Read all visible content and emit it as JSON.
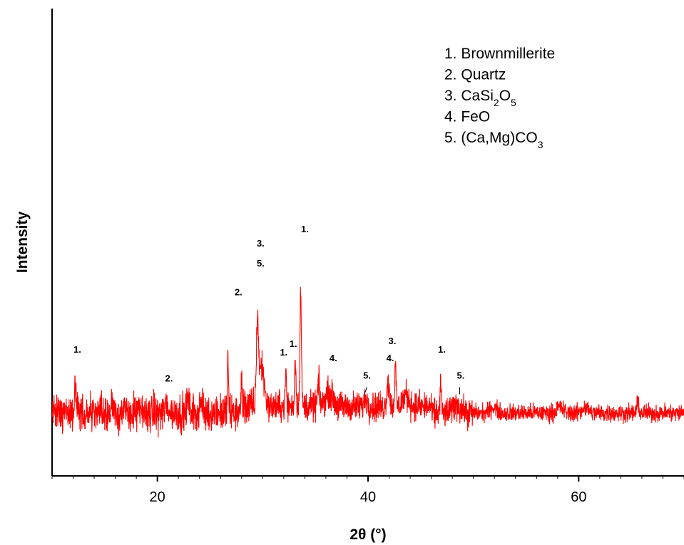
{
  "chart_data": {
    "type": "line",
    "title": "",
    "xlabel": "2θ (°)",
    "ylabel": "Intensity",
    "xlim": [
      10,
      70
    ],
    "ylim": [
      0,
      100
    ],
    "xticks": [
      20,
      40,
      60
    ],
    "y_tick_labels": false,
    "grid": false,
    "color": "#ff0000",
    "legend": {
      "placement": "top-right",
      "entries": [
        {
          "num": "1.",
          "parts": [
            [
              "Brownmillerite",
              ""
            ]
          ]
        },
        {
          "num": "2.",
          "parts": [
            [
              "Quartz",
              ""
            ]
          ]
        },
        {
          "num": "3.",
          "parts": [
            [
              "CaSi",
              ""
            ],
            [
              "2",
              "sub"
            ],
            [
              "O",
              ""
            ],
            [
              "5",
              "sub"
            ]
          ]
        },
        {
          "num": "4.",
          "parts": [
            [
              "FeO",
              ""
            ]
          ]
        },
        {
          "num": "5.",
          "parts": [
            [
              "(Ca,Mg)CO",
              ""
            ],
            [
              "3",
              "sub"
            ]
          ]
        }
      ]
    },
    "baseline": 12,
    "noise": 3.2,
    "peaks": [
      {
        "x": 12.2,
        "h": 10,
        "w": 0.08
      },
      {
        "x": 15.8,
        "h": 4,
        "w": 0.12
      },
      {
        "x": 20.9,
        "h": 3,
        "w": 0.15
      },
      {
        "x": 22.9,
        "h": 5,
        "w": 0.1
      },
      {
        "x": 24.1,
        "h": 4,
        "w": 0.12
      },
      {
        "x": 26.7,
        "h": 21,
        "w": 0.05
      },
      {
        "x": 28.0,
        "h": 12,
        "w": 0.05
      },
      {
        "x": 29.5,
        "h": 28,
        "w": 0.1
      },
      {
        "x": 29.9,
        "h": 14,
        "w": 0.25
      },
      {
        "x": 32.2,
        "h": 12,
        "w": 0.06
      },
      {
        "x": 33.1,
        "h": 16,
        "w": 0.07
      },
      {
        "x": 33.6,
        "h": 40,
        "w": 0.07
      },
      {
        "x": 35.3,
        "h": 8,
        "w": 0.1
      },
      {
        "x": 36.3,
        "h": 5,
        "w": 0.35
      },
      {
        "x": 39.8,
        "h": 3,
        "w": 0.15
      },
      {
        "x": 41.9,
        "h": 9,
        "w": 0.12
      },
      {
        "x": 42.6,
        "h": 13,
        "w": 0.07
      },
      {
        "x": 43.6,
        "h": 4,
        "w": 0.3
      },
      {
        "x": 46.9,
        "h": 11,
        "w": 0.06
      },
      {
        "x": 48.4,
        "h": 3,
        "w": 0.35
      },
      {
        "x": 51.9,
        "h": 2,
        "w": 0.3
      },
      {
        "x": 58.2,
        "h": 2,
        "w": 0.3
      },
      {
        "x": 60.6,
        "h": 2,
        "w": 0.3
      },
      {
        "x": 65.6,
        "h": 3,
        "w": 0.1
      }
    ],
    "annotations": [
      {
        "text": "1.",
        "x": 12.4,
        "y": 33
      },
      {
        "text": "2.",
        "x": 21.1,
        "y": 23
      },
      {
        "text": "2.",
        "x": 27.7,
        "y": 53
      },
      {
        "text": "3.",
        "x": 29.8,
        "y": 70
      },
      {
        "text": "5.",
        "x": 29.8,
        "y": 63
      },
      {
        "text": "1.",
        "x": 32.0,
        "y": 32
      },
      {
        "text": "1.",
        "x": 32.9,
        "y": 35
      },
      {
        "text": "1.",
        "x": 34.0,
        "y": 75
      },
      {
        "text": "4.",
        "x": 36.7,
        "y": 30
      },
      {
        "text": "5.",
        "x": 39.9,
        "y": 24
      },
      {
        "text": "3.",
        "x": 42.3,
        "y": 36
      },
      {
        "text": "4.",
        "x": 42.1,
        "y": 30
      },
      {
        "text": "1.",
        "x": 47.0,
        "y": 33
      },
      {
        "text": "5.",
        "x": 48.8,
        "y": 24
      }
    ],
    "pointer_lines": [
      {
        "x1": 39.9,
        "y1": 21,
        "x2": 39.6,
        "y2": 18
      },
      {
        "x1": 48.7,
        "y1": 21,
        "x2": 48.7,
        "y2": 18.5
      }
    ]
  }
}
